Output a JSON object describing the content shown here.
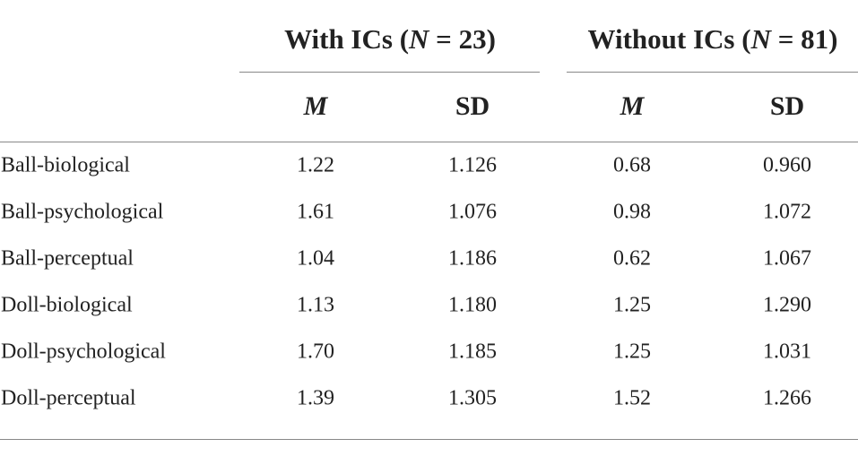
{
  "table": {
    "groups": [
      {
        "prefix": "With ICs (",
        "symbol": "N",
        "suffix": " = 23)"
      },
      {
        "prefix": "Without ICs (",
        "symbol": "N",
        "suffix": " = 81)"
      }
    ],
    "subheaders": [
      "M",
      "SD",
      "M",
      "SD"
    ],
    "rows": [
      [
        "Ball-biological",
        "1.22",
        "1.126",
        "0.68",
        "0.960"
      ],
      [
        "Ball-psychological",
        "1.61",
        "1.076",
        "0.98",
        "1.072"
      ],
      [
        "Ball-perceptual",
        "1.04",
        "1.186",
        "0.62",
        "1.067"
      ],
      [
        "Doll-biological",
        "1.13",
        "1.180",
        "1.25",
        "1.290"
      ],
      [
        "Doll-psychological",
        "1.70",
        "1.185",
        "1.25",
        "1.031"
      ],
      [
        "Doll-perceptual",
        "1.39",
        "1.305",
        "1.52",
        "1.266"
      ]
    ]
  }
}
